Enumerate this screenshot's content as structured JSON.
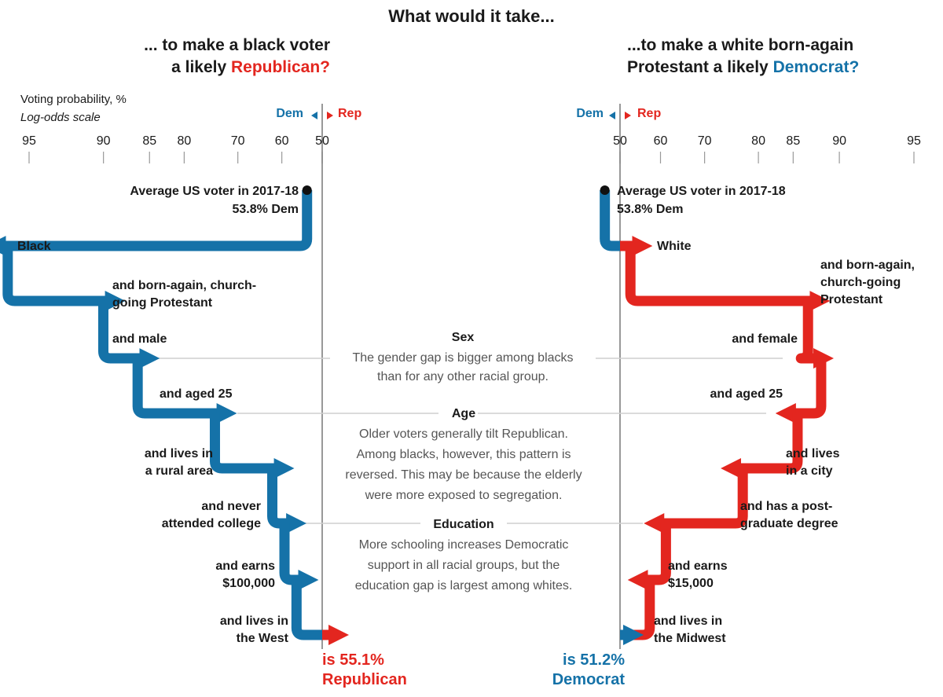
{
  "title": "What would it take...",
  "left_heading": {
    "line1": "... to make a black voter",
    "line2_prefix": "a likely ",
    "line2_party": "Republican?"
  },
  "right_heading": {
    "line1": "...to make a white born-again",
    "line2_prefix": "Protestant a likely ",
    "line2_party": "Democrat?"
  },
  "axis": {
    "label": "Voting probability, %",
    "scale_note": "Log-odds scale",
    "dem_label": "Dem",
    "rep_label": "Rep"
  },
  "colors": {
    "dem": "#1572a8",
    "rep": "#e3261f",
    "grid": "#bbbbbb",
    "note": "#555555"
  },
  "notes": [
    {
      "heading": "Sex",
      "lines": [
        "The gender gap is bigger among blacks",
        "than for any other racial group."
      ]
    },
    {
      "heading": "Age",
      "lines": [
        "Older voters generally tilt Republican.",
        "Among blacks, however, this pattern is",
        "reversed. This may be because the elderly",
        "were more exposed to segregation."
      ]
    },
    {
      "heading": "Education",
      "lines": [
        "More schooling increases Democratic",
        "support in all racial groups, but the",
        "education gap is largest among whites."
      ]
    }
  ],
  "chart_data": [
    {
      "type": "line",
      "title": "... to make a black voter a likely Republican?",
      "xlabel": "Voting probability, %",
      "x_scale": "log-odds",
      "x_ticks": [
        "95",
        "90",
        "85",
        "80",
        "70",
        "60",
        "50"
      ],
      "start": {
        "label": "Average US voter in 2017-18",
        "value_label": "53.8% Dem",
        "dem_pct": 53.8
      },
      "steps": [
        {
          "label": "Black",
          "dem_pct": 96.5
        },
        {
          "label": "and born-again, church-going Protestant",
          "dem_pct": 88.5
        },
        {
          "label": "and male",
          "dem_pct": 84.5
        },
        {
          "label": "and aged 25",
          "dem_pct": 71.5
        },
        {
          "label": "and lives in a rural area",
          "dem_pct": 58.5
        },
        {
          "label": "and never attended college",
          "dem_pct": 55.5
        },
        {
          "label": "and earns $100,000",
          "dem_pct": 52.5
        },
        {
          "label": "and lives in the West",
          "rep_pct": 55.1
        }
      ],
      "result": {
        "line1": "is 55.1%",
        "line2": "Republican"
      }
    },
    {
      "type": "line",
      "title": "...to make a white born-again Protestant a likely Democrat?",
      "xlabel": "Voting probability, %",
      "x_scale": "log-odds",
      "x_ticks": [
        "50",
        "60",
        "70",
        "80",
        "85",
        "90",
        "95"
      ],
      "start": {
        "label": "Average US voter in 2017-18",
        "value_label": "53.8% Dem",
        "dem_pct": 53.8
      },
      "steps": [
        {
          "label": "White",
          "rep_pct": 56.5
        },
        {
          "label": "and born-again, church-going Protestant",
          "rep_pct": 88.5
        },
        {
          "label": "and female",
          "rep_pct": 86.5
        },
        {
          "label": "and aged 25",
          "rep_pct": 83.5
        },
        {
          "label": "and lives in a city",
          "rep_pct": 74.5
        },
        {
          "label": "and has a post-graduate degree",
          "rep_pct": 57.5
        },
        {
          "label": "and earns $15,000",
          "rep_pct": 53.5
        },
        {
          "label": "and lives in the Midwest",
          "dem_pct": 51.2
        }
      ],
      "result": {
        "line1": "is 51.2%",
        "line2": "Democrat"
      }
    }
  ]
}
